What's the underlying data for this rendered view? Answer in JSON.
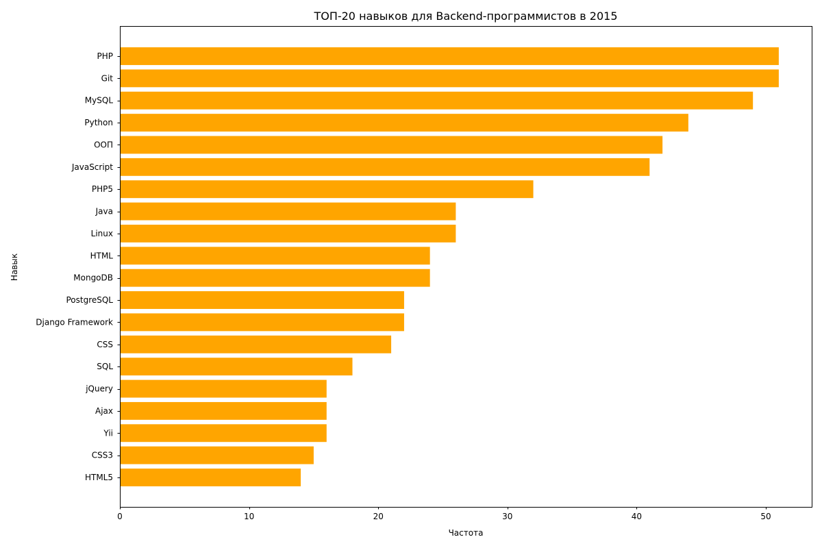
{
  "chart_data": {
    "type": "bar",
    "orientation": "horizontal",
    "title": "ТОП-20 навыков для Backend-программистов в 2015",
    "xlabel": "Частота",
    "ylabel": "Навык",
    "categories": [
      "PHP",
      "Git",
      "MySQL",
      "Python",
      "ООП",
      "JavaScript",
      "PHP5",
      "Java",
      "Linux",
      "HTML",
      "MongoDB",
      "PostgreSQL",
      "Django Framework",
      "CSS",
      "SQL",
      "jQuery",
      "Ajax",
      "Yii",
      "CSS3",
      "HTML5"
    ],
    "values": [
      51,
      51,
      49,
      44,
      42,
      41,
      32,
      26,
      26,
      24,
      24,
      22,
      22,
      21,
      18,
      16,
      16,
      16,
      15,
      14
    ],
    "xlim": [
      0,
      53.55
    ],
    "xticks": [
      0,
      10,
      20,
      30,
      40,
      50
    ],
    "grid": false,
    "bar_color": "#ffa500"
  }
}
